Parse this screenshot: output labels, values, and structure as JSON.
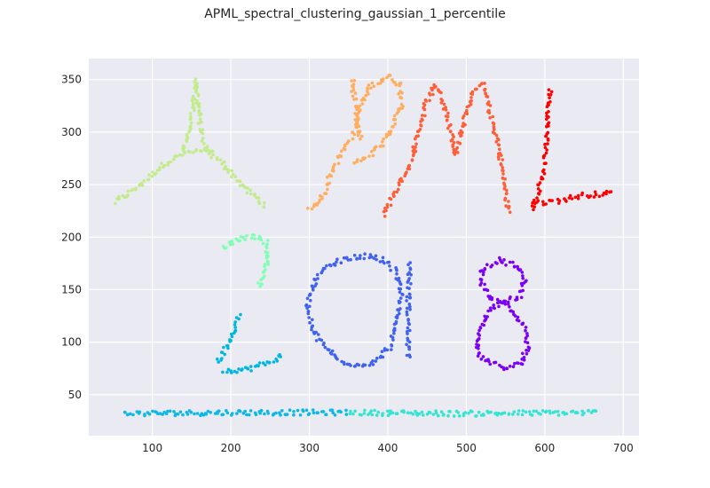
{
  "chart_data": {
    "type": "scatter",
    "title": "APML_spectral_clustering_gaussian_1_percentile",
    "xlabel": "",
    "ylabel": "",
    "xlim": [
      19,
      720
    ],
    "ylim": [
      11,
      370
    ],
    "xticks": [
      100,
      200,
      300,
      400,
      500,
      600,
      700
    ],
    "yticks": [
      50,
      100,
      150,
      200,
      250,
      300,
      350
    ],
    "grid": true,
    "background": "#EAEAF2",
    "grid_color": "#ffffff",
    "clusters": [
      {
        "glyph": "A",
        "color": "#C3EB8C",
        "strokes": [
          [
            [
              52,
              233
            ],
            [
              80,
              247
            ],
            [
              112,
              268
            ],
            [
              140,
              280
            ],
            [
              160,
              282
            ],
            [
              180,
              280
            ]
          ],
          [
            [
              140,
              282
            ],
            [
              148,
              305
            ],
            [
              153,
              330
            ],
            [
              156,
              348
            ]
          ],
          [
            [
              156,
              348
            ],
            [
              160,
              315
            ],
            [
              164,
              290
            ],
            [
              172,
              280
            ],
            [
              190,
              270
            ],
            [
              220,
              245
            ],
            [
              245,
              230
            ]
          ]
        ]
      },
      {
        "glyph": "P",
        "color": "#FFAD5E",
        "strokes": [
          [
            [
              300,
              225
            ],
            [
              318,
              240
            ],
            [
              330,
              265
            ],
            [
              348,
              288
            ],
            [
              360,
              305
            ],
            [
              365,
              325
            ],
            [
              375,
              342
            ],
            [
              400,
              353
            ],
            [
              415,
              345
            ],
            [
              418,
              325
            ],
            [
              405,
              305
            ],
            [
              395,
              290
            ],
            [
              380,
              280
            ],
            [
              355,
              270
            ]
          ],
          [
            [
              355,
              350
            ],
            [
              358,
              325
            ],
            [
              362,
              300
            ],
            [
              367,
              290
            ]
          ]
        ]
      },
      {
        "glyph": "M",
        "color": "#FF5F38",
        "strokes": [
          [
            [
              395,
              222
            ],
            [
              410,
              245
            ],
            [
              428,
              270
            ],
            [
              440,
              300
            ],
            [
              448,
              325
            ],
            [
              460,
              345
            ],
            [
              472,
              328
            ],
            [
              480,
              302
            ],
            [
              486,
              278
            ],
            [
              494,
              302
            ],
            [
              502,
              322
            ],
            [
              512,
              342
            ],
            [
              522,
              345
            ],
            [
              530,
              318
            ],
            [
              540,
              292
            ],
            [
              547,
              258
            ],
            [
              554,
              222
            ]
          ]
        ]
      },
      {
        "glyph": "L",
        "color": "#FF0000",
        "strokes": [
          [
            [
              607,
              340
            ],
            [
              604,
              310
            ],
            [
              601,
              285
            ],
            [
              598,
              262
            ],
            [
              590,
              240
            ],
            [
              583,
              225
            ]
          ],
          [
            [
              590,
              232
            ],
            [
              620,
              235
            ],
            [
              650,
              240
            ],
            [
              688,
              242
            ]
          ]
        ]
      },
      {
        "glyph": "2-top",
        "color": "#80FFB4",
        "strokes": [
          [
            [
              190,
              190
            ],
            [
              205,
              197
            ],
            [
              220,
              200
            ],
            [
              235,
              201
            ],
            [
              245,
              195
            ],
            [
              248,
              182
            ],
            [
              242,
              165
            ],
            [
              234,
              150
            ]
          ]
        ]
      },
      {
        "glyph": "2-bottom",
        "color": "#00B6E3",
        "strokes": [
          [
            [
              210,
              125
            ],
            [
              202,
              105
            ],
            [
              190,
              90
            ],
            [
              182,
              80
            ]
          ],
          [
            [
              190,
              73
            ],
            [
              220,
              74
            ],
            [
              245,
              80
            ],
            [
              268,
              88
            ]
          ]
        ]
      },
      {
        "glyph": "baseline-left",
        "color": "#0DB8E8",
        "strokes": [
          [
            [
              63,
              32
            ],
            [
              200,
              33
            ],
            [
              350,
              33
            ]
          ]
        ]
      },
      {
        "glyph": "baseline-right",
        "color": "#36E5D1",
        "strokes": [
          [
            [
              352,
              33
            ],
            [
              500,
              32
            ],
            [
              670,
              33
            ]
          ]
        ]
      },
      {
        "glyph": "0",
        "color": "#4062EE",
        "strokes": [
          [
            [
              348,
              180
            ],
            [
              320,
              172
            ],
            [
              305,
              155
            ],
            [
              298,
              135
            ],
            [
              305,
              110
            ],
            [
              320,
              95
            ],
            [
              340,
              82
            ],
            [
              365,
              78
            ],
            [
              385,
              82
            ],
            [
              402,
              95
            ],
            [
              412,
              120
            ],
            [
              418,
              145
            ],
            [
              410,
              168
            ],
            [
              395,
              178
            ],
            [
              375,
              182
            ],
            [
              348,
              180
            ]
          ]
        ]
      },
      {
        "glyph": "1",
        "color": "#4062EE",
        "strokes": [
          [
            [
              428,
              174
            ],
            [
              426,
              130
            ],
            [
              426,
              84
            ]
          ]
        ]
      },
      {
        "glyph": "8",
        "color": "#7B00F5",
        "strokes": [
          [
            [
              520,
              170
            ],
            [
              540,
              178
            ],
            [
              560,
              174
            ],
            [
              575,
              160
            ],
            [
              568,
              145
            ],
            [
              548,
              137
            ],
            [
              530,
              132
            ],
            [
              520,
              115
            ],
            [
              515,
              100
            ],
            [
              515,
              88
            ],
            [
              530,
              80
            ],
            [
              550,
              76
            ],
            [
              570,
              80
            ],
            [
              578,
              95
            ],
            [
              575,
              112
            ],
            [
              565,
              125
            ],
            [
              548,
              137
            ],
            [
              530,
              142
            ],
            [
              520,
              155
            ],
            [
              520,
              170
            ]
          ]
        ]
      }
    ]
  }
}
